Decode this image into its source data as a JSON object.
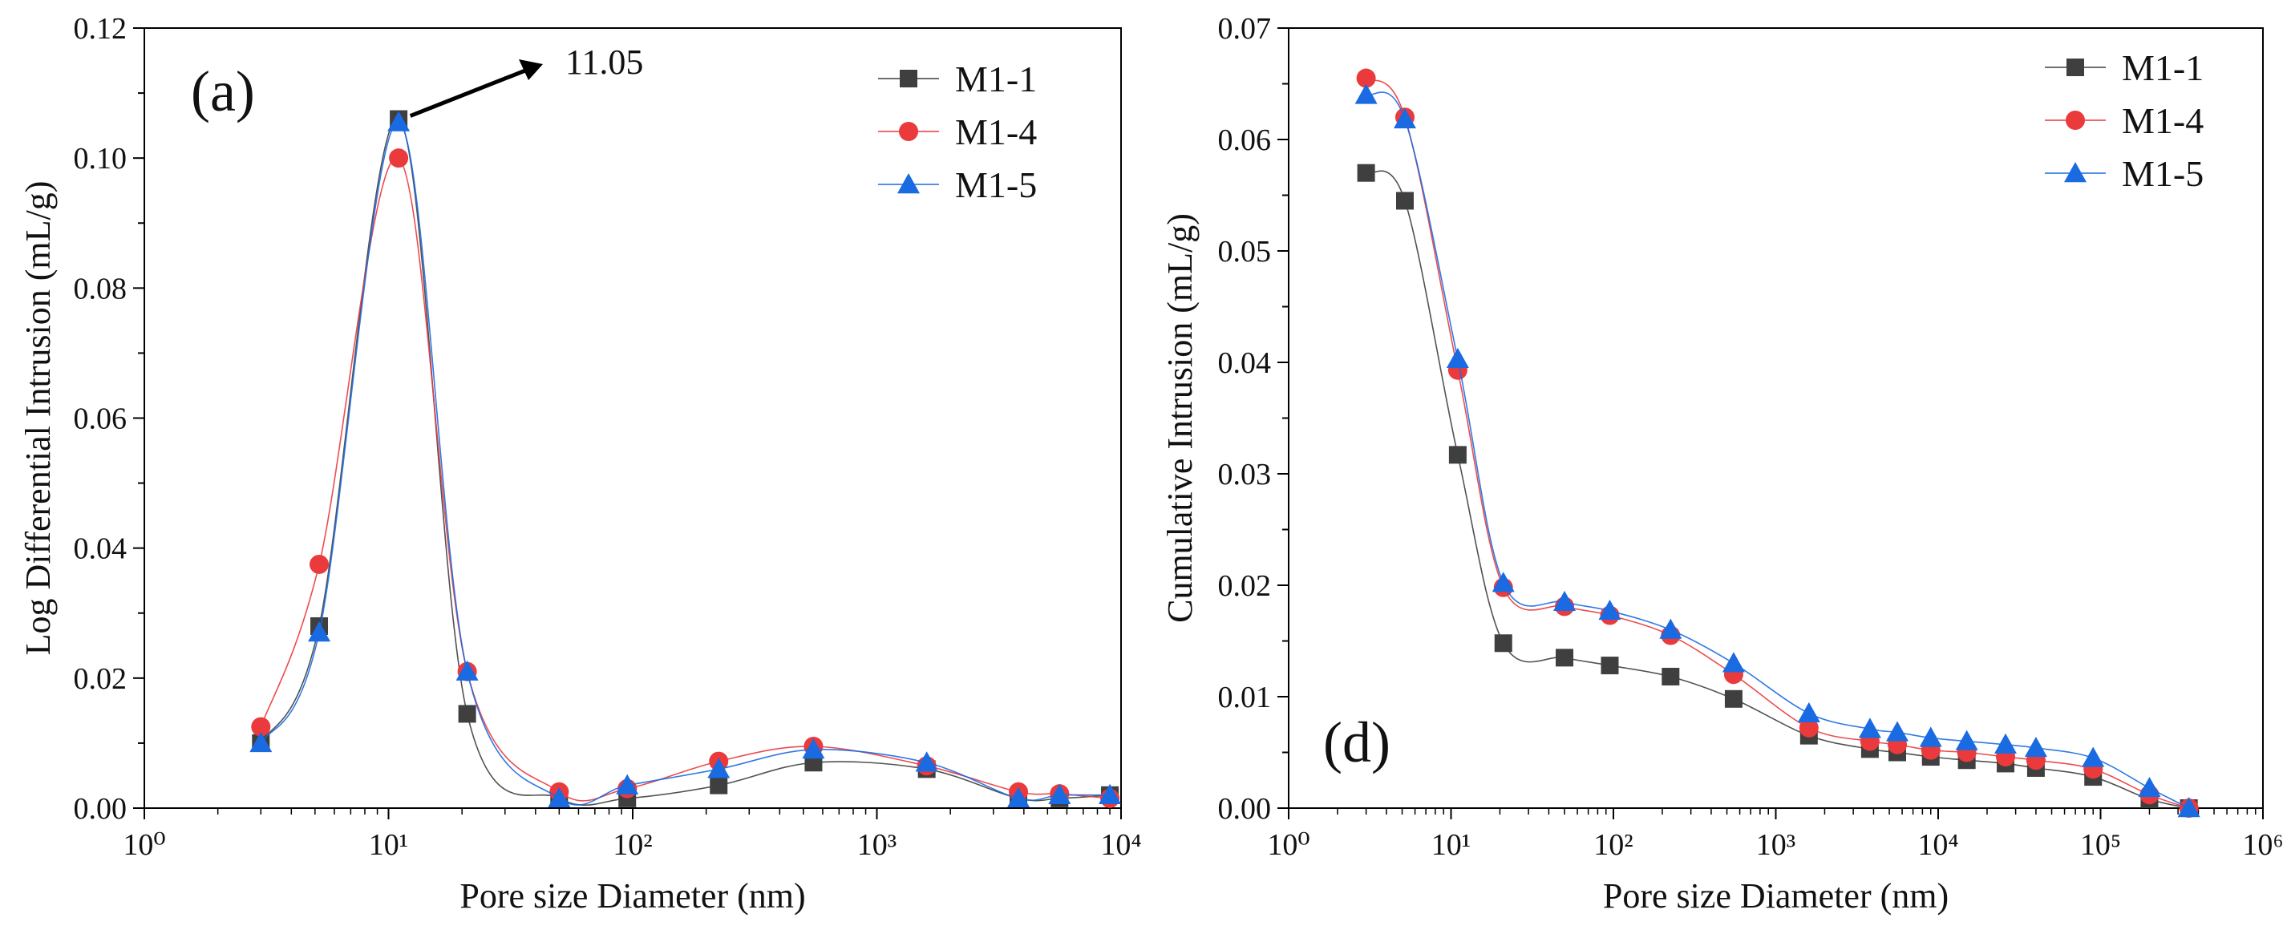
{
  "colors": {
    "M1-1": "#3f3f3f",
    "M1-4": "#ea3a3c",
    "M1-5": "#1a6ae2"
  },
  "chart_data": [
    {
      "type": "line",
      "panel_label": "(a)",
      "xlabel": "Pore size Diameter (nm)",
      "ylabel": "Log Differential Intrusion (mL/g)",
      "x_scale": "log",
      "xlim": [
        1,
        10000
      ],
      "ylim": [
        0,
        0.12
      ],
      "x_ticks": [
        "10⁰",
        "10¹",
        "10²",
        "10³",
        "10⁴"
      ],
      "y_ticks": [
        "0.00",
        "0.02",
        "0.04",
        "0.06",
        "0.08",
        "0.10",
        "0.12"
      ],
      "legend_position": "top-right",
      "annotation": {
        "text": "11.05",
        "x": 11.05,
        "y": 0.106
      },
      "series": [
        {
          "name": "M1-1",
          "marker": "square",
          "x": [
            3,
            5.2,
            11,
            21,
            50,
            95,
            225,
            550,
            1600,
            3800,
            5600,
            9000
          ],
          "y": [
            0.01,
            0.028,
            0.106,
            0.0145,
            0.0015,
            0.0015,
            0.0035,
            0.007,
            0.006,
            0.0015,
            0.0015,
            0.002
          ]
        },
        {
          "name": "M1-4",
          "marker": "circle",
          "x": [
            3,
            5.2,
            11,
            21,
            50,
            95,
            225,
            550,
            1600,
            3800,
            5600,
            9000
          ],
          "y": [
            0.0125,
            0.0375,
            0.1,
            0.021,
            0.0025,
            0.003,
            0.0072,
            0.0095,
            0.0065,
            0.0025,
            0.0022,
            0.0015
          ]
        },
        {
          "name": "M1-5",
          "marker": "triangle",
          "x": [
            3,
            5.2,
            11,
            21,
            50,
            95,
            225,
            550,
            1600,
            3800,
            5600,
            9000
          ],
          "y": [
            0.01,
            0.027,
            0.1055,
            0.021,
            0.0015,
            0.0035,
            0.006,
            0.009,
            0.007,
            0.0015,
            0.002,
            0.002
          ]
        }
      ]
    },
    {
      "type": "line",
      "panel_label": "(d)",
      "xlabel": "Pore size Diameter (nm)",
      "ylabel": "Cumulative Intrusion (mL/g)",
      "x_scale": "log",
      "xlim": [
        1,
        1000000
      ],
      "ylim": [
        0,
        0.07
      ],
      "x_ticks": [
        "10⁰",
        "10¹",
        "10²",
        "10³",
        "10⁴",
        "10⁵",
        "10⁶"
      ],
      "y_ticks": [
        "0.00",
        "0.01",
        "0.02",
        "0.03",
        "0.04",
        "0.05",
        "0.06",
        "0.07"
      ],
      "legend_position": "top-right",
      "series": [
        {
          "name": "M1-1",
          "marker": "square",
          "x": [
            3,
            5.2,
            11,
            21,
            50,
            95,
            225,
            550,
            1600,
            3800,
            5600,
            9000,
            15000,
            26000,
            40000,
            90000,
            200000,
            350000
          ],
          "y": [
            0.057,
            0.0545,
            0.0317,
            0.0148,
            0.0135,
            0.0128,
            0.0118,
            0.0098,
            0.0065,
            0.0053,
            0.005,
            0.0046,
            0.0043,
            0.004,
            0.0036,
            0.0028,
            0.0008,
            0.0
          ]
        },
        {
          "name": "M1-4",
          "marker": "circle",
          "x": [
            3,
            5.2,
            11,
            21,
            50,
            95,
            225,
            550,
            1600,
            3800,
            5600,
            9000,
            15000,
            26000,
            40000,
            90000,
            200000,
            350000
          ],
          "y": [
            0.0655,
            0.062,
            0.0393,
            0.0198,
            0.0181,
            0.0173,
            0.0155,
            0.012,
            0.0072,
            0.006,
            0.0057,
            0.0052,
            0.005,
            0.0046,
            0.0043,
            0.0035,
            0.0012,
            0.0
          ]
        },
        {
          "name": "M1-5",
          "marker": "triangle",
          "x": [
            3,
            5.2,
            11,
            21,
            50,
            95,
            225,
            550,
            1600,
            3800,
            5600,
            9000,
            15000,
            26000,
            40000,
            90000,
            200000,
            350000
          ],
          "y": [
            0.064,
            0.0618,
            0.0403,
            0.0202,
            0.0185,
            0.0177,
            0.016,
            0.013,
            0.0085,
            0.0071,
            0.0068,
            0.0063,
            0.006,
            0.0057,
            0.0054,
            0.0045,
            0.0018,
            0.0
          ]
        }
      ]
    }
  ]
}
